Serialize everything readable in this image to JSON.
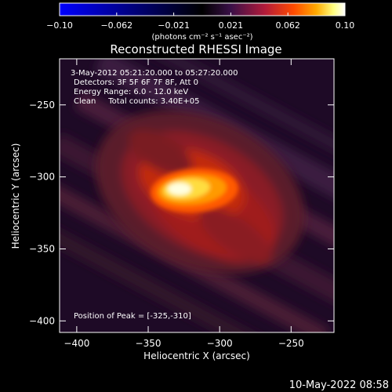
{
  "colorbar": {
    "min": -0.1,
    "max": 0.1,
    "tick_labels": [
      "-0.10",
      "-0.062",
      "-0.021",
      "0.021",
      "0.062",
      "0.10"
    ],
    "units_text": "(photons cm⁻² s⁻¹ asec⁻²)",
    "colors": [
      "#0000ff",
      "#000066",
      "#000000",
      "#3a1048",
      "#b31b3a",
      "#ff4a00",
      "#ffaa00",
      "#ffff80",
      "#ffffff"
    ]
  },
  "chart_data": {
    "type": "heatmap",
    "title": "Reconstructed RHESSI Image",
    "xlabel": "Heliocentric X (arcsec)",
    "ylabel": "Heliocentric Y (arcsec)",
    "xlim": [
      -412,
      -220
    ],
    "ylim": [
      -408,
      -218
    ],
    "xticks": [
      -400,
      -350,
      -300,
      -250
    ],
    "yticks": [
      -250,
      -300,
      -350,
      -400
    ],
    "peak": {
      "x": -325,
      "y": -310,
      "value": 0.1
    },
    "annotations": [
      "3-May-2012 05:21:20.000 to 05:27:20.000",
      "Detectors: 3F 5F 6F 7F 8F, Att 0",
      "Energy Range: 6.0 - 12.0 keV",
      "Clean     Total counts: 3.40E+05"
    ],
    "peak_label": "Position of Peak = [-325,-310]"
  },
  "footer": {
    "timestamp": "10-May-2022 08:58"
  }
}
